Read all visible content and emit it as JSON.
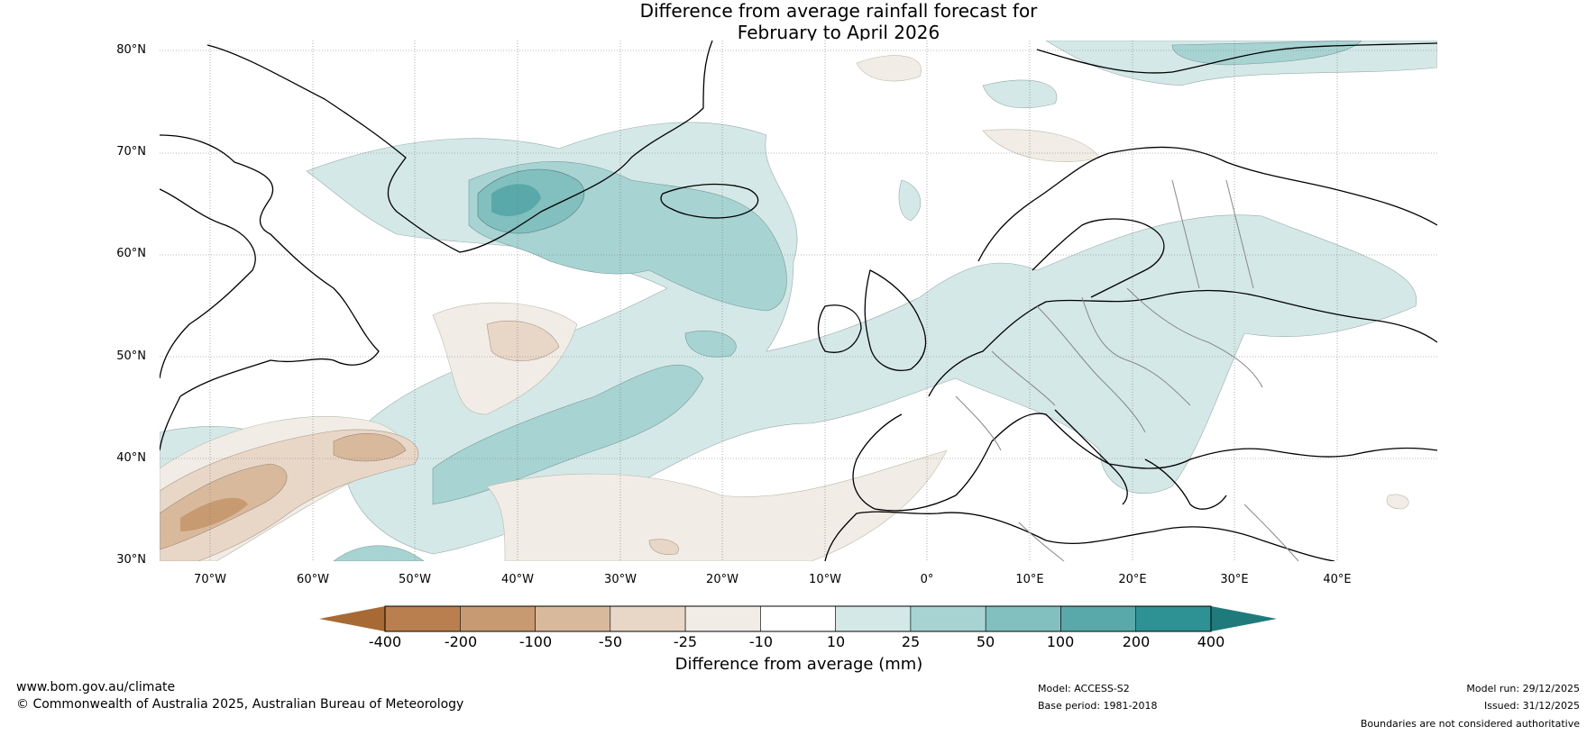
{
  "title_line1": "Difference from average rainfall forecast for",
  "title_line2": "February to April 2026",
  "lat_labels": [
    "80°N",
    "70°N",
    "60°N",
    "50°N",
    "40°N",
    "30°N"
  ],
  "lon_labels": [
    "70°W",
    "60°W",
    "50°W",
    "40°W",
    "30°W",
    "20°W",
    "10°W",
    "0°",
    "10°E",
    "20°E",
    "30°E",
    "40°E"
  ],
  "colorbar": {
    "ticks": [
      "-400",
      "-200",
      "-100",
      "-50",
      "-25",
      "-10",
      "10",
      "25",
      "50",
      "100",
      "200",
      "400"
    ],
    "colors": [
      "#a86a35",
      "#b97f4e",
      "#c89a71",
      "#d8b99b",
      "#e8d7c7",
      "#f1ece6",
      "#ffffff",
      "#d3e8e7",
      "#a7d3d3",
      "#82c0bf",
      "#5aa9aa",
      "#2e9295",
      "#1f7a7c"
    ],
    "label": "Difference from average (mm)"
  },
  "footer": {
    "website": "www.bom.gov.au/climate",
    "copyright": "© Commonwealth of Australia 2025, Australian Bureau of Meteorology",
    "model": "Model: ACCESS-S2",
    "base_period": "Base period: 1981-2018",
    "model_run": "Model run: 29/12/2025",
    "issued": "Issued: 31/12/2025",
    "disclaimer": "Boundaries are not considered authoritative"
  }
}
